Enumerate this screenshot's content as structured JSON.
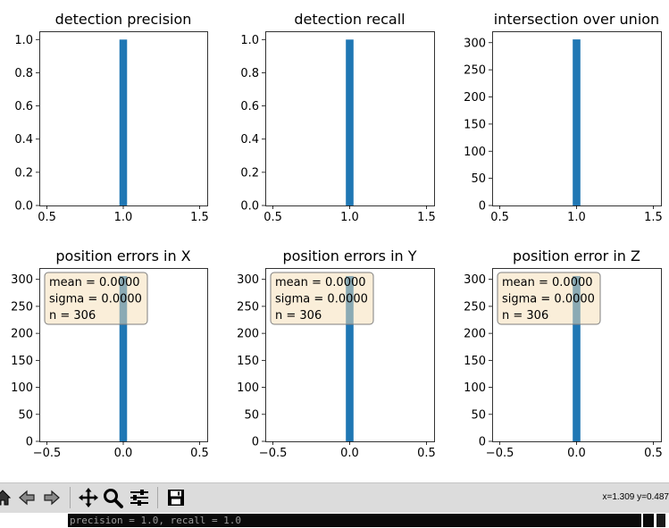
{
  "chart_data": [
    {
      "type": "bar",
      "title": "detection precision",
      "xlim": [
        0.45,
        1.55
      ],
      "ylim": [
        0,
        1.05
      ],
      "xticks": [
        "0.5",
        "1.0",
        "1.5"
      ],
      "yticks": [
        "0.0",
        "0.2",
        "0.4",
        "0.6",
        "0.8",
        "1.0"
      ],
      "bars": [
        {
          "x0": 0.975,
          "x1": 1.025,
          "value": 1.0
        }
      ],
      "annotation": null
    },
    {
      "type": "bar",
      "title": "detection recall",
      "xlim": [
        0.45,
        1.55
      ],
      "ylim": [
        0,
        1.05
      ],
      "xticks": [
        "0.5",
        "1.0",
        "1.5"
      ],
      "yticks": [
        "0.0",
        "0.2",
        "0.4",
        "0.6",
        "0.8",
        "1.0"
      ],
      "bars": [
        {
          "x0": 0.975,
          "x1": 1.025,
          "value": 1.0
        }
      ],
      "annotation": null
    },
    {
      "type": "bar",
      "title": "intersection over union",
      "xlim": [
        0.45,
        1.55
      ],
      "ylim": [
        0,
        321
      ],
      "xticks": [
        "0.5",
        "1.0",
        "1.5"
      ],
      "yticks": [
        "0",
        "50",
        "100",
        "150",
        "200",
        "250",
        "300"
      ],
      "bars": [
        {
          "x0": 0.975,
          "x1": 1.025,
          "value": 306
        }
      ],
      "annotation": null
    },
    {
      "type": "bar",
      "title": "position errors in X",
      "xlim": [
        -0.55,
        0.55
      ],
      "ylim": [
        0,
        321
      ],
      "xticks": [
        "−0.5",
        "0.0",
        "0.5"
      ],
      "yticks": [
        "0",
        "50",
        "100",
        "150",
        "200",
        "250",
        "300"
      ],
      "bars": [
        {
          "x0": -0.025,
          "x1": 0.025,
          "value": 306
        }
      ],
      "annotation": [
        "mean = 0.0000",
        "sigma = 0.0000",
        "n = 306"
      ]
    },
    {
      "type": "bar",
      "title": "position errors in Y",
      "xlim": [
        -0.55,
        0.55
      ],
      "ylim": [
        0,
        321
      ],
      "xticks": [
        "−0.5",
        "0.0",
        "0.5"
      ],
      "yticks": [
        "0",
        "50",
        "100",
        "150",
        "200",
        "250",
        "300"
      ],
      "bars": [
        {
          "x0": -0.025,
          "x1": 0.025,
          "value": 306
        }
      ],
      "annotation": [
        "mean = 0.0000",
        "sigma = 0.0000",
        "n = 306"
      ]
    },
    {
      "type": "bar",
      "title": "position error in Z",
      "xlim": [
        -0.55,
        0.55
      ],
      "ylim": [
        0,
        321
      ],
      "xticks": [
        "−0.5",
        "0.0",
        "0.5"
      ],
      "yticks": [
        "0",
        "50",
        "100",
        "150",
        "200",
        "250",
        "300"
      ],
      "bars": [
        {
          "x0": -0.025,
          "x1": 0.025,
          "value": 306
        }
      ],
      "annotation": [
        "mean = 0.0000",
        "sigma = 0.0000",
        "n = 306"
      ]
    }
  ],
  "colors": {
    "bar": "#1f77b4",
    "annotation_fill": "#f5deb3",
    "annotation_edge": "#7f7f7f"
  },
  "toolbar": {
    "buttons": [
      {
        "name": "home-icon"
      },
      {
        "name": "back-icon"
      },
      {
        "name": "forward-icon"
      },
      {
        "name": "pan-icon"
      },
      {
        "name": "zoom-icon"
      },
      {
        "name": "configure-subplots-icon"
      },
      {
        "name": "save-icon"
      }
    ],
    "coordinates": "x=1.309 y=0.487"
  },
  "terminal": {
    "text": "precision = 1.0, recall = 1.0"
  }
}
